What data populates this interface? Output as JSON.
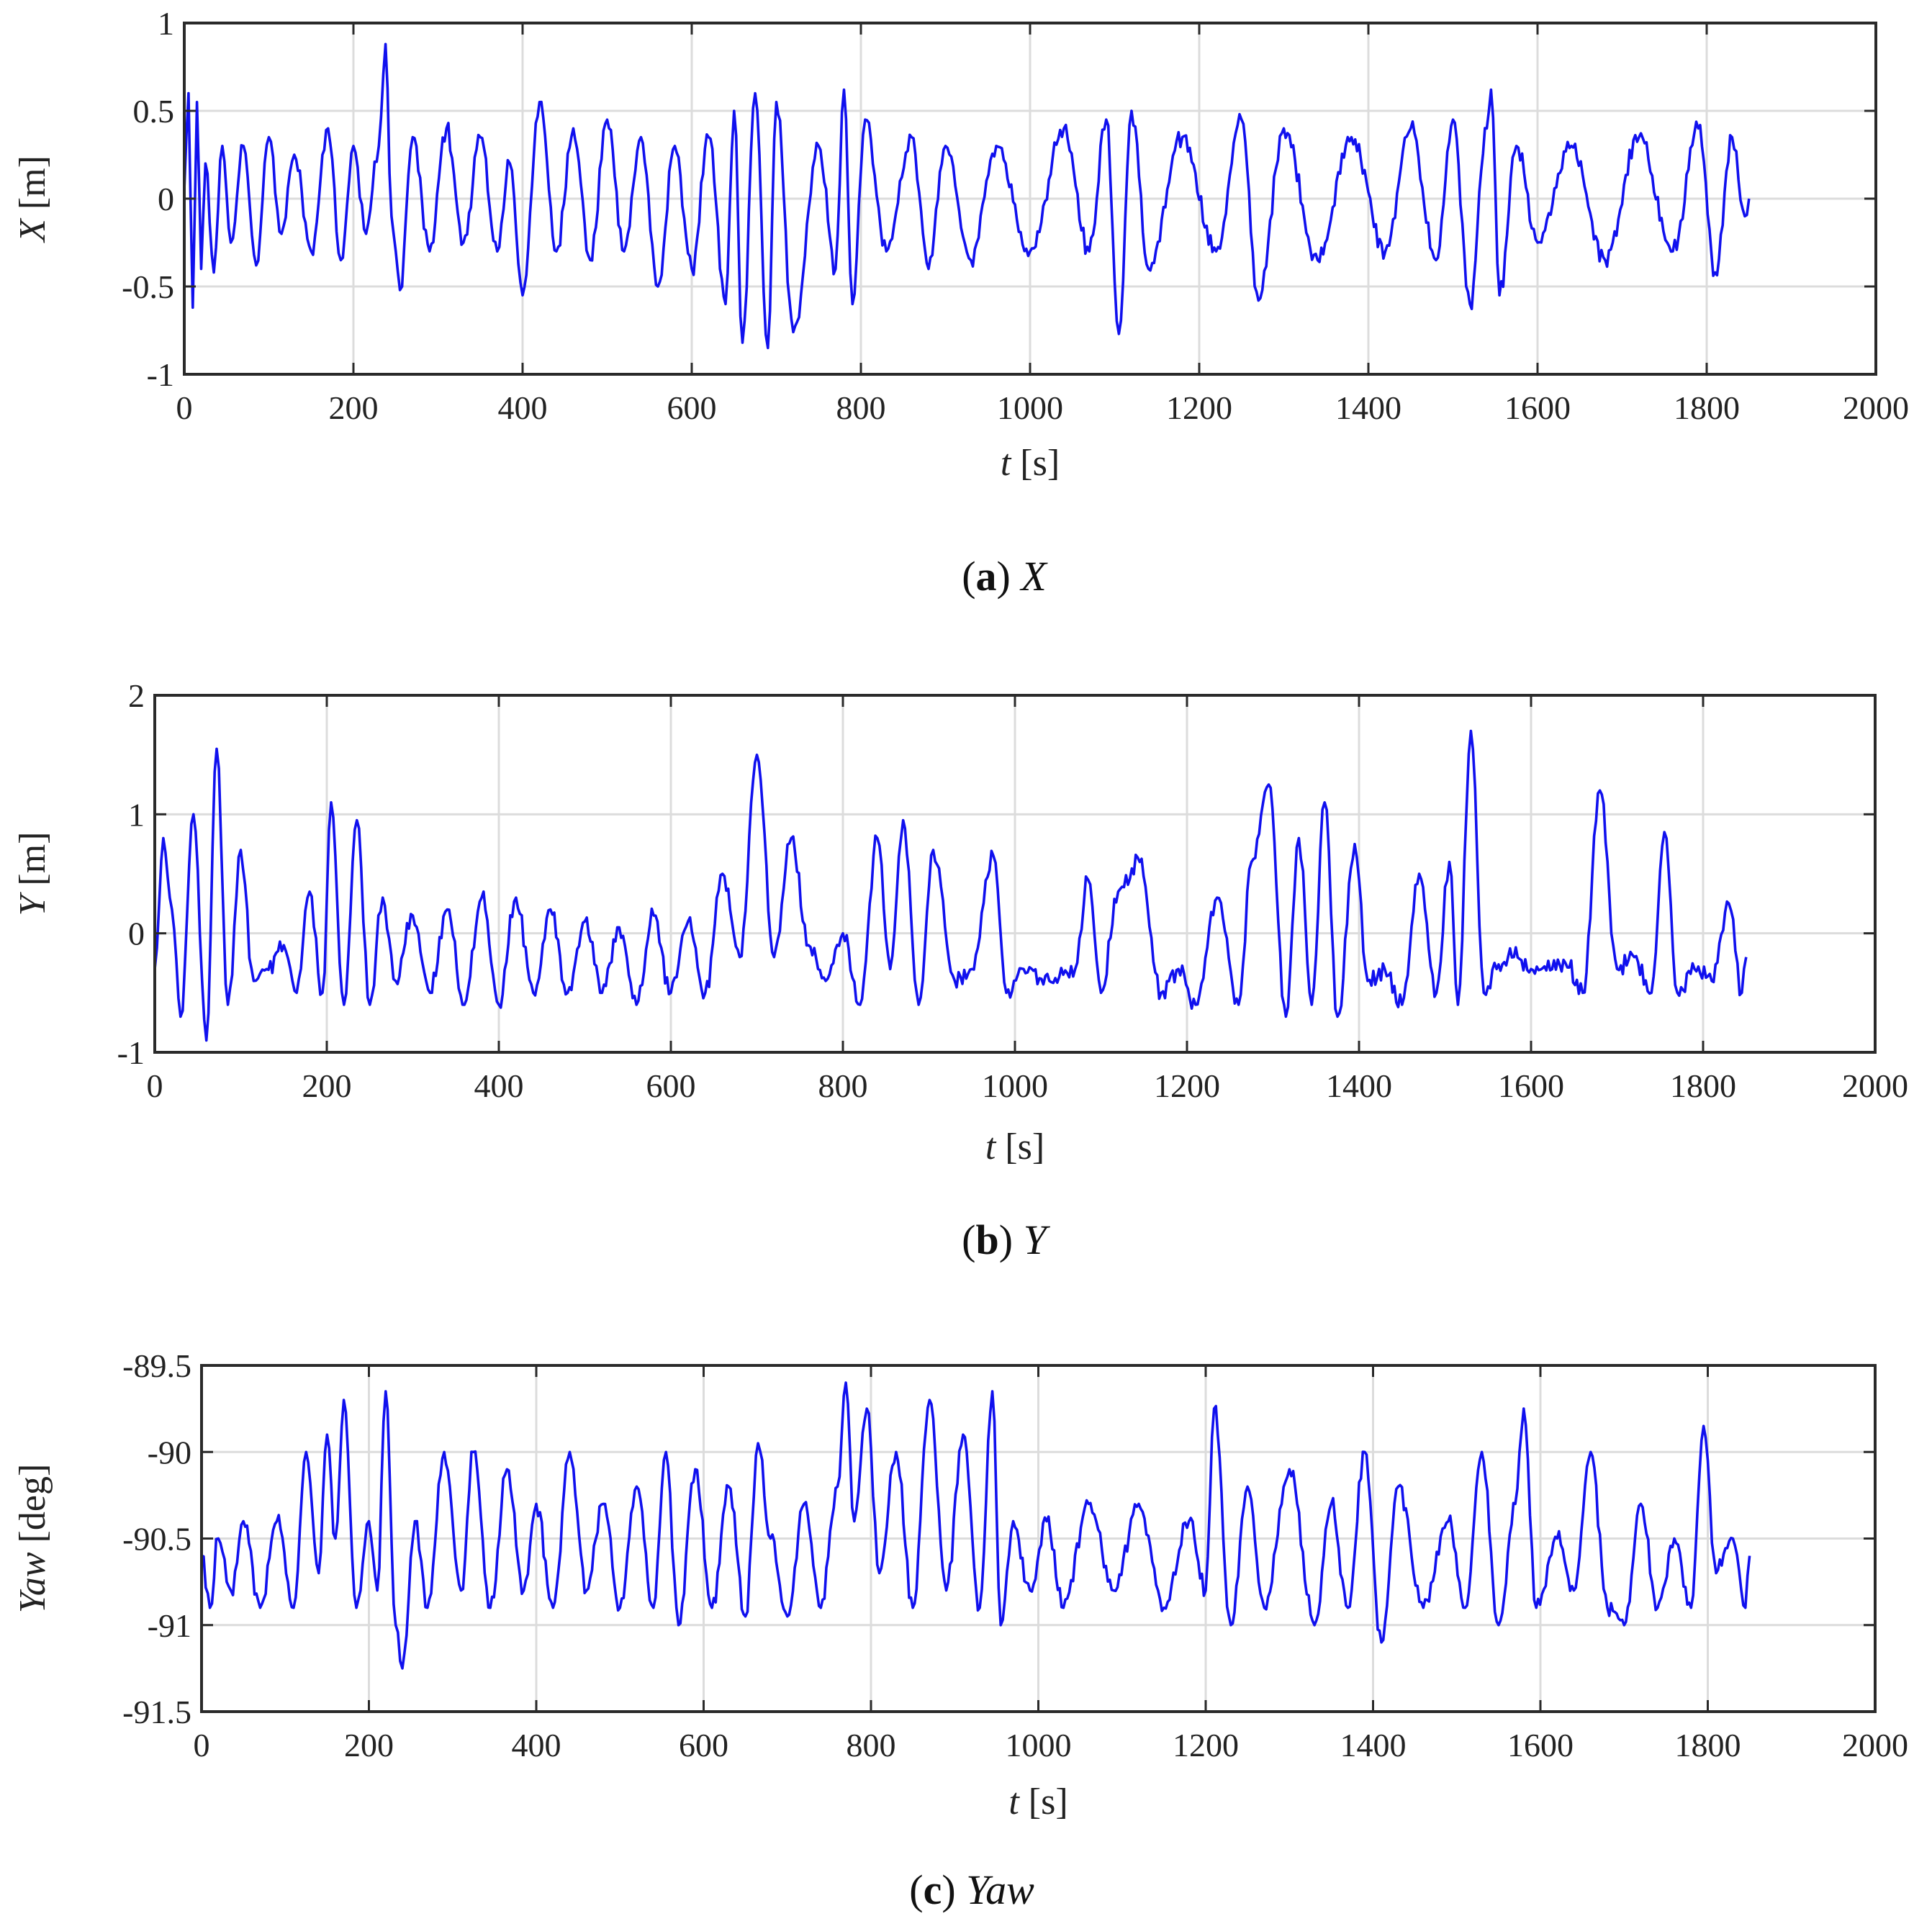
{
  "figure": {
    "subplots": [
      {
        "key": "X",
        "caption": {
          "letter": "a",
          "symbol": "X"
        },
        "xlabel": {
          "var": "t",
          "unit": "[s]"
        },
        "ylabel": {
          "var": "X",
          "unit": "[m]"
        }
      },
      {
        "key": "Y",
        "caption": {
          "letter": "b",
          "symbol": "Y"
        },
        "xlabel": {
          "var": "t",
          "unit": "[s]"
        },
        "ylabel": {
          "var": "Y",
          "unit": "[m]"
        }
      },
      {
        "key": "Yaw",
        "caption": {
          "letter": "c",
          "symbol": "Yaw"
        },
        "xlabel": {
          "var": "t",
          "unit": "[s]"
        },
        "ylabel": {
          "var": "Yaw",
          "unit": "[deg]"
        }
      }
    ]
  },
  "chart_data": [
    {
      "type": "line",
      "title": "",
      "xlabel": "t [s]",
      "ylabel": "X [m]",
      "xlim": [
        0,
        2000
      ],
      "ylim": [
        -1,
        1
      ],
      "xticks": [
        "0",
        "200",
        "400",
        "600",
        "800",
        "1000",
        "1200",
        "1400",
        "1600",
        "1800",
        "2000"
      ],
      "yticks": [
        "1",
        "0.5",
        "0",
        "-0.5",
        "-1"
      ],
      "grid": true,
      "color": "#1010ee",
      "series": [
        {
          "x": [
            0,
            5,
            10,
            15,
            20,
            25,
            35,
            45,
            55,
            70,
            85,
            100,
            115,
            130,
            150,
            170,
            185,
            200,
            215,
            230,
            238,
            245,
            255,
            270,
            290,
            310,
            330,
            350,
            370,
            385,
            400,
            420,
            440,
            460,
            480,
            500,
            520,
            540,
            560,
            580,
            600,
            620,
            640,
            650,
            660,
            675,
            690,
            700,
            720,
            750,
            770,
            780,
            790,
            805,
            830,
            860,
            880,
            900,
            930,
            960,
            1000,
            1040,
            1070,
            1090,
            1105,
            1120,
            1140,
            1180,
            1220,
            1250,
            1270,
            1300,
            1340,
            1380,
            1420,
            1450,
            1480,
            1500,
            1520,
            1540,
            1545,
            1555,
            1575,
            1600,
            1640,
            1680,
            1720,
            1760,
            1790,
            1810,
            1830,
            1845,
            1850
          ],
          "y": [
            0.05,
            0.6,
            -0.62,
            0.55,
            -0.4,
            0.2,
            -0.42,
            0.3,
            -0.25,
            0.3,
            -0.38,
            0.35,
            -0.2,
            0.25,
            -0.3,
            0.4,
            -0.35,
            0.3,
            -0.2,
            0.3,
            0.88,
            -0.1,
            -0.52,
            0.35,
            -0.3,
            0.4,
            -0.25,
            0.35,
            -0.3,
            0.2,
            -0.55,
            0.55,
            -0.3,
            0.4,
            -0.35,
            0.45,
            -0.3,
            0.35,
            -0.5,
            0.3,
            -0.4,
            0.35,
            -0.6,
            0.5,
            -0.82,
            0.6,
            -0.85,
            0.55,
            -0.76,
            0.3,
            -0.4,
            0.62,
            -0.6,
            0.45,
            -0.3,
            0.35,
            -0.4,
            0.3,
            -0.35,
            0.3,
            -0.3,
            0.4,
            -0.3,
            0.45,
            -0.77,
            0.5,
            -0.4,
            0.35,
            -0.3,
            0.45,
            -0.58,
            0.4,
            -0.35,
            0.35,
            -0.3,
            0.4,
            -0.35,
            0.45,
            -0.6,
            0.4,
            0.62,
            -0.55,
            0.3,
            -0.25,
            0.3,
            -0.35,
            0.35,
            -0.3,
            0.4,
            -0.42,
            0.35,
            -0.1,
            0.0
          ]
        }
      ]
    },
    {
      "type": "line",
      "title": "",
      "xlabel": "t [s]",
      "ylabel": "Y [m]",
      "xlim": [
        0,
        2000
      ],
      "ylim": [
        -1,
        2
      ],
      "xticks": [
        "0",
        "200",
        "400",
        "600",
        "800",
        "1000",
        "1200",
        "1400",
        "1600",
        "1800",
        "2000"
      ],
      "yticks": [
        "2",
        "1",
        "0",
        "-1"
      ],
      "grid": true,
      "color": "#1010ee",
      "series": [
        {
          "x": [
            0,
            10,
            20,
            30,
            45,
            60,
            72,
            85,
            100,
            115,
            130,
            150,
            165,
            180,
            195,
            205,
            220,
            235,
            250,
            265,
            280,
            300,
            320,
            340,
            360,
            380,
            400,
            420,
            440,
            460,
            480,
            500,
            520,
            540,
            560,
            580,
            600,
            620,
            640,
            660,
            680,
            700,
            720,
            740,
            760,
            780,
            800,
            820,
            840,
            855,
            870,
            888,
            905,
            930,
            950,
            975,
            990,
            1010,
            1040,
            1070,
            1085,
            1100,
            1120,
            1145,
            1170,
            1190,
            1210,
            1235,
            1260,
            1275,
            1295,
            1315,
            1330,
            1345,
            1360,
            1375,
            1395,
            1410,
            1430,
            1450,
            1470,
            1490,
            1505,
            1515,
            1530,
            1545,
            1560,
            1580,
            1600,
            1640,
            1660,
            1680,
            1700,
            1720,
            1740,
            1755,
            1770,
            1790,
            1810,
            1830,
            1845,
            1850
          ],
          "y": [
            -0.3,
            0.8,
            0.2,
            -0.7,
            1.0,
            -0.9,
            1.55,
            -0.6,
            0.7,
            -0.4,
            -0.3,
            -0.1,
            -0.5,
            0.35,
            -0.5,
            1.1,
            -0.6,
            0.95,
            -0.6,
            0.3,
            -0.4,
            0.15,
            -0.5,
            0.2,
            -0.6,
            0.3,
            -0.6,
            0.3,
            -0.5,
            0.2,
            -0.5,
            0.1,
            -0.5,
            0.05,
            -0.6,
            0.15,
            -0.5,
            0.1,
            -0.5,
            0.5,
            -0.2,
            1.5,
            -0.2,
            0.8,
            -0.1,
            -0.4,
            0.0,
            -0.6,
            0.8,
            -0.3,
            0.95,
            -0.6,
            0.7,
            -0.4,
            -0.3,
            0.65,
            -0.5,
            -0.3,
            -0.4,
            -0.3,
            0.45,
            -0.5,
            0.35,
            0.6,
            -0.5,
            -0.3,
            -0.6,
            0.3,
            -0.6,
            0.6,
            1.25,
            -0.7,
            0.8,
            -0.6,
            1.1,
            -0.7,
            0.75,
            -0.4,
            -0.3,
            -0.6,
            0.5,
            -0.5,
            0.6,
            -0.6,
            1.7,
            -0.5,
            -0.3,
            -0.2,
            -0.3,
            -0.25,
            -0.5,
            1.2,
            -0.3,
            -0.2,
            -0.5,
            0.85,
            -0.5,
            -0.3,
            -0.4,
            0.25,
            -0.5,
            -0.2
          ]
        }
      ]
    },
    {
      "type": "line",
      "title": "",
      "xlabel": "t [s]",
      "ylabel": "Yaw [deg]",
      "xlim": [
        0,
        2000
      ],
      "ylim": [
        -91.5,
        -89.5
      ],
      "xticks": [
        "0",
        "200",
        "400",
        "600",
        "800",
        "1000",
        "1200",
        "1400",
        "1600",
        "1800",
        "2000"
      ],
      "yticks": [
        "-89.5",
        "-90",
        "-90.5",
        "-91",
        "-91.5"
      ],
      "grid": true,
      "color": "#1010ee",
      "series": [
        {
          "x": [
            0,
            10,
            20,
            35,
            50,
            70,
            90,
            110,
            125,
            140,
            150,
            160,
            170,
            185,
            200,
            210,
            220,
            232,
            240,
            255,
            270,
            290,
            310,
            325,
            345,
            365,
            385,
            400,
            420,
            440,
            460,
            480,
            500,
            520,
            540,
            555,
            570,
            590,
            610,
            630,
            650,
            665,
            680,
            700,
            720,
            740,
            760,
            770,
            780,
            795,
            810,
            830,
            850,
            870,
            890,
            910,
            930,
            945,
            955,
            970,
            990,
            1010,
            1030,
            1060,
            1090,
            1120,
            1150,
            1180,
            1200,
            1210,
            1230,
            1250,
            1270,
            1300,
            1330,
            1350,
            1370,
            1390,
            1410,
            1430,
            1460,
            1490,
            1510,
            1530,
            1550,
            1570,
            1580,
            1595,
            1620,
            1640,
            1660,
            1680,
            1700,
            1720,
            1740,
            1760,
            1780,
            1795,
            1810,
            1830,
            1845,
            1850
          ],
          "y": [
            -90.6,
            -90.9,
            -90.5,
            -90.8,
            -90.4,
            -90.9,
            -90.4,
            -90.9,
            -90.0,
            -90.7,
            -89.9,
            -90.5,
            -89.7,
            -90.9,
            -90.4,
            -90.8,
            -89.65,
            -91.0,
            -91.25,
            -90.4,
            -90.9,
            -90.0,
            -90.8,
            -90.0,
            -90.9,
            -90.1,
            -90.8,
            -90.3,
            -90.9,
            -90.0,
            -90.8,
            -90.3,
            -90.9,
            -90.2,
            -90.9,
            -90.0,
            -91.0,
            -90.1,
            -90.9,
            -90.2,
            -90.95,
            -89.95,
            -90.5,
            -90.95,
            -90.3,
            -90.9,
            -90.2,
            -89.6,
            -90.4,
            -89.75,
            -90.7,
            -90.0,
            -90.9,
            -89.7,
            -90.8,
            -89.9,
            -90.9,
            -89.65,
            -91.0,
            -90.4,
            -90.8,
            -90.4,
            -90.9,
            -90.3,
            -90.8,
            -90.3,
            -90.9,
            -90.4,
            -90.8,
            -89.75,
            -91.0,
            -90.2,
            -90.9,
            -90.1,
            -91.0,
            -90.3,
            -90.9,
            -90.0,
            -91.1,
            -90.2,
            -90.9,
            -90.4,
            -90.9,
            -90.0,
            -91.0,
            -90.3,
            -89.75,
            -90.9,
            -90.5,
            -90.8,
            -90.0,
            -90.9,
            -91.0,
            -90.3,
            -90.9,
            -90.5,
            -90.9,
            -89.85,
            -90.7,
            -90.5,
            -90.9,
            -90.6
          ]
        }
      ]
    }
  ]
}
